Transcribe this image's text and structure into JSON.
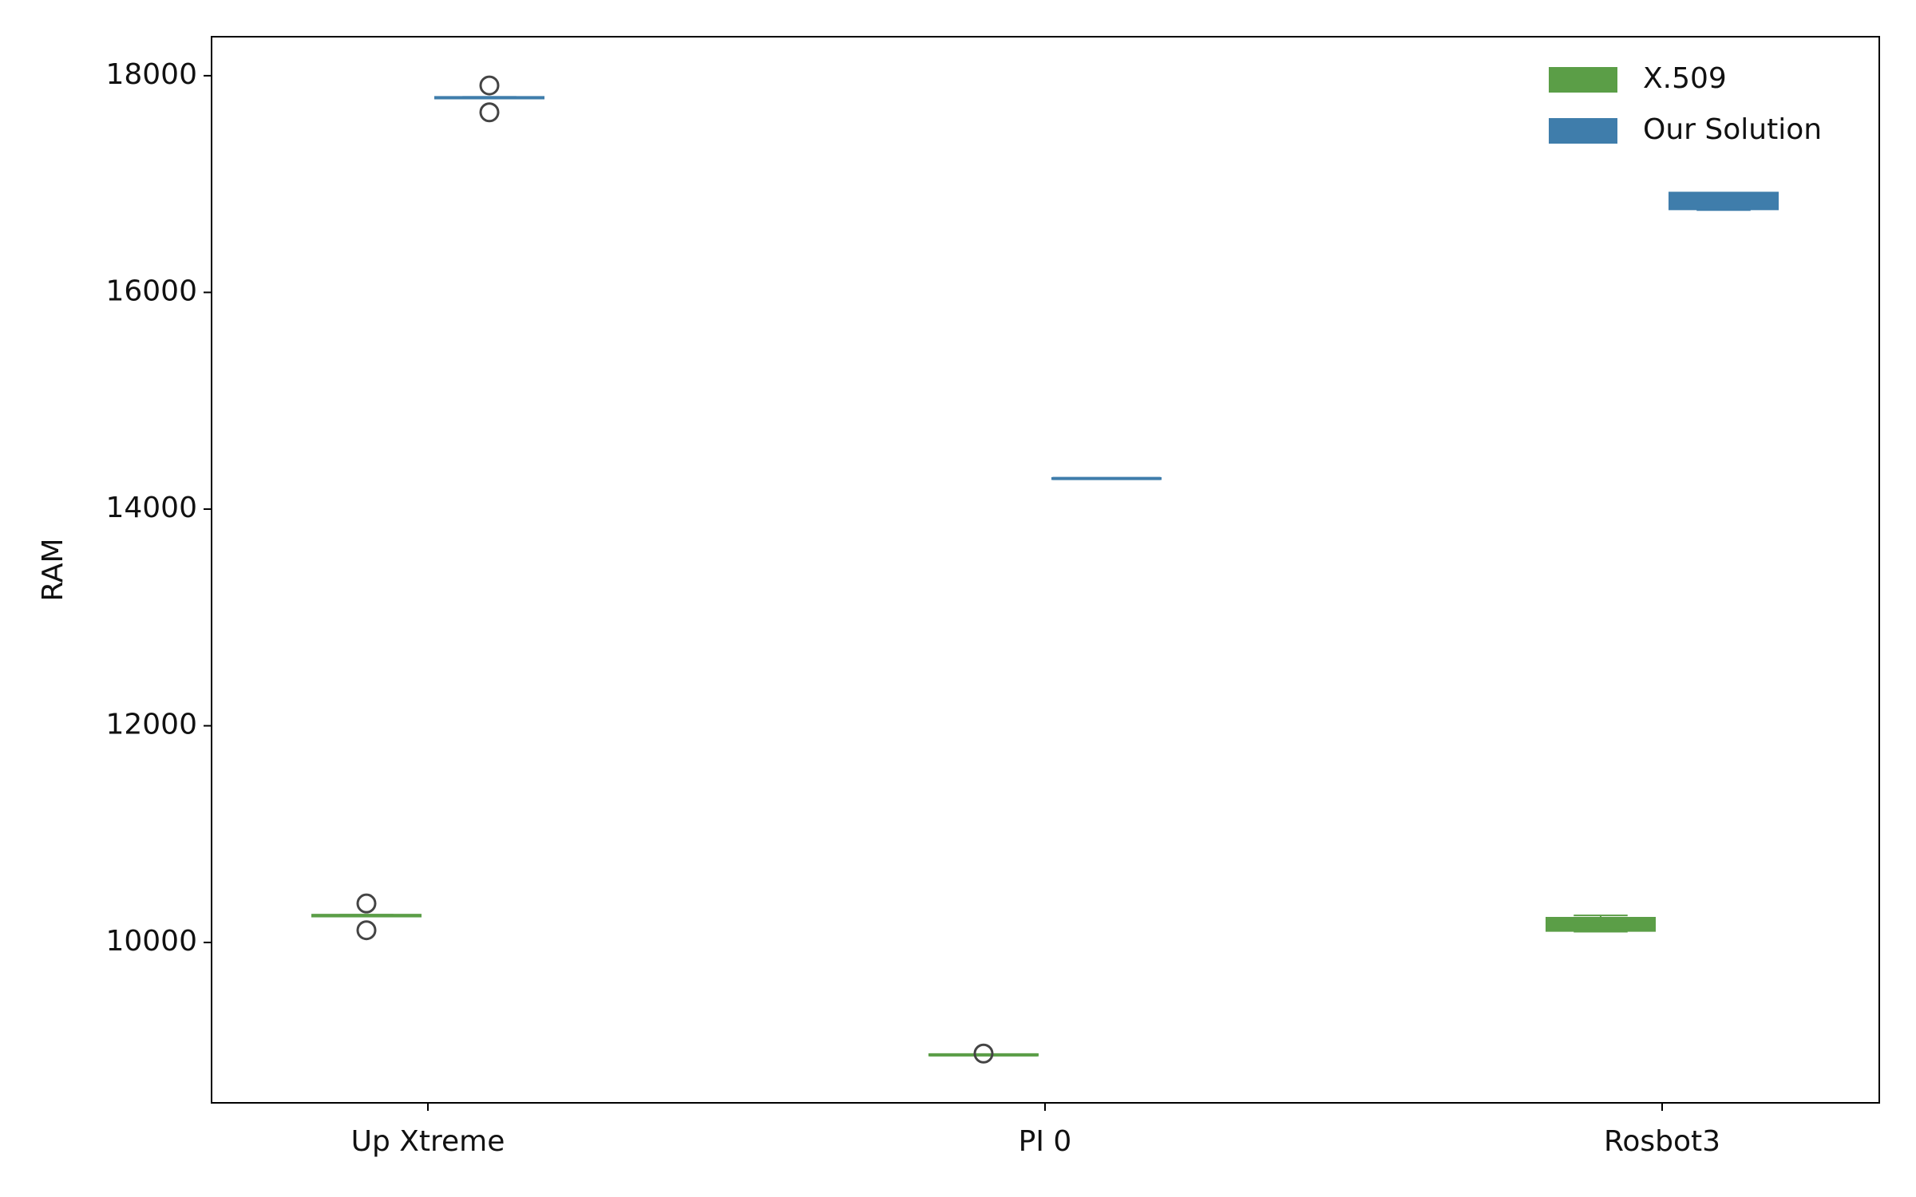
{
  "chart_data": {
    "type": "box",
    "ylabel": "RAM",
    "categories": [
      "Up Xtreme",
      "PI 0",
      "Rosbot3"
    ],
    "ylim": [
      8520,
      18360
    ],
    "yticks": [
      10000,
      12000,
      14000,
      16000,
      18000
    ],
    "legend": "upper right",
    "series": [
      {
        "name": "X.509",
        "color": "#5b9e47",
        "boxes": [
          {
            "low": 10240,
            "q1": 10243,
            "median": 10248,
            "q3": 10253,
            "high": 10256,
            "outliers": [
              10360,
              10113
            ]
          },
          {
            "low": 8958,
            "q1": 8960,
            "median": 8963,
            "q3": 8966,
            "high": 8968,
            "outliers": [
              8975
            ]
          },
          {
            "low": 10100,
            "q1": 10110,
            "median": 10200,
            "q3": 10225,
            "high": 10250,
            "outliers": []
          }
        ]
      },
      {
        "name": "Our Solution",
        "color": "#3f7dab",
        "boxes": [
          {
            "low": 17790,
            "q1": 17793,
            "median": 17797,
            "q3": 17801,
            "high": 17805,
            "outliers": [
              17910,
              17662
            ]
          },
          {
            "low": 14279,
            "q1": 14280,
            "median": 14282,
            "q3": 14284,
            "high": 14285,
            "outliers": []
          },
          {
            "low": 16760,
            "q1": 16770,
            "median": 16780,
            "q3": 16918,
            "high": 16918,
            "outliers": []
          }
        ]
      }
    ]
  }
}
